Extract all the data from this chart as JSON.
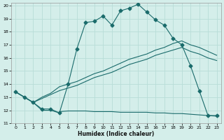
{
  "xlabel": "Humidex (Indice chaleur)",
  "xlim": [
    -0.5,
    23.5
  ],
  "ylim": [
    11,
    20.2
  ],
  "yticks": [
    11,
    12,
    13,
    14,
    15,
    16,
    17,
    18,
    19,
    20
  ],
  "xticks": [
    0,
    1,
    2,
    3,
    4,
    5,
    6,
    7,
    8,
    9,
    10,
    11,
    12,
    13,
    14,
    15,
    16,
    17,
    18,
    19,
    20,
    21,
    22,
    23
  ],
  "background_color": "#d4eeea",
  "grid_color": "#b8ddd8",
  "line_color": "#1a6b6b",
  "curve_x": [
    0,
    1,
    2,
    3,
    4,
    5,
    6,
    7,
    8,
    9,
    10,
    11,
    12,
    13,
    14,
    15,
    16,
    17,
    18,
    19,
    20,
    21,
    22,
    23
  ],
  "curve_y": [
    13.4,
    13.0,
    12.6,
    12.1,
    12.1,
    11.8,
    14.0,
    16.7,
    18.7,
    18.8,
    19.2,
    18.5,
    19.6,
    19.8,
    20.1,
    19.5,
    18.9,
    18.5,
    17.5,
    17.0,
    15.4,
    13.5,
    11.6,
    11.6
  ],
  "trend1_x": [
    0,
    1,
    2,
    3,
    4,
    5,
    6,
    7,
    8,
    9,
    10,
    11,
    12,
    13,
    14,
    15,
    16,
    17,
    18,
    19,
    20,
    21,
    22,
    23
  ],
  "trend1_y": [
    13.4,
    13.0,
    12.6,
    13.0,
    13.3,
    13.8,
    14.0,
    14.2,
    14.5,
    14.8,
    15.0,
    15.3,
    15.6,
    15.9,
    16.1,
    16.3,
    16.6,
    16.8,
    17.1,
    17.3,
    17.0,
    16.8,
    16.5,
    16.2
  ],
  "trend2_x": [
    0,
    1,
    2,
    3,
    4,
    5,
    6,
    7,
    8,
    9,
    10,
    11,
    12,
    13,
    14,
    15,
    16,
    17,
    18,
    19,
    20,
    21,
    22,
    23
  ],
  "trend2_y": [
    13.4,
    13.0,
    12.6,
    12.9,
    13.2,
    13.5,
    13.7,
    13.9,
    14.2,
    14.5,
    14.7,
    14.9,
    15.2,
    15.5,
    15.7,
    15.9,
    16.2,
    16.4,
    16.6,
    16.8,
    16.5,
    16.3,
    16.0,
    15.8
  ],
  "flat_x": [
    0,
    1,
    2,
    3,
    4,
    5,
    5,
    6,
    7,
    8,
    9,
    10,
    11,
    12,
    13,
    14,
    15,
    16,
    17,
    18,
    19,
    20,
    21,
    22,
    23
  ],
  "flat_y": [
    13.4,
    13.0,
    12.6,
    12.0,
    12.0,
    11.8,
    11.9,
    11.95,
    11.95,
    11.95,
    11.9,
    11.9,
    11.9,
    11.85,
    11.85,
    11.85,
    11.85,
    11.8,
    11.8,
    11.75,
    11.75,
    11.7,
    11.65,
    11.6,
    11.55
  ]
}
